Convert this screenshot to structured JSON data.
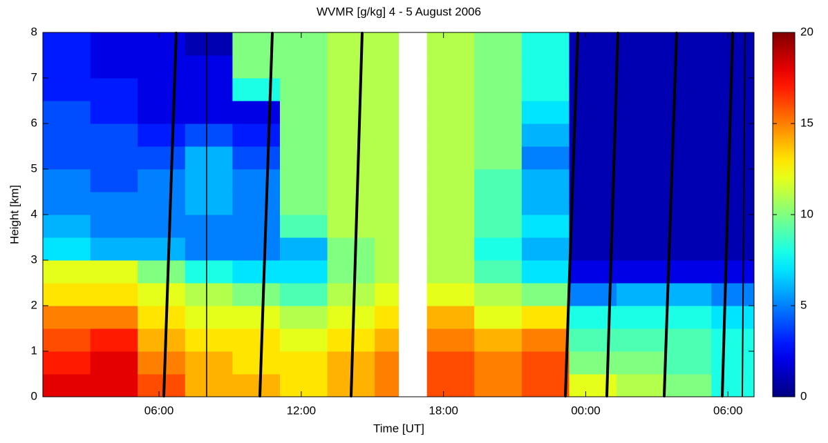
{
  "chart_data": {
    "type": "heatmap",
    "title": "WVMR [g/kg] 4 - 5 August 2006",
    "x_label": "Time [UT]",
    "y_label": "Height [km]",
    "xlim": [
      1.1,
      31.1
    ],
    "xticks": [
      {
        "value": 6,
        "label": "06:00"
      },
      {
        "value": 12,
        "label": "12:00"
      },
      {
        "value": 18,
        "label": "18:00"
      },
      {
        "value": 24,
        "label": "00:00"
      },
      {
        "value": 30,
        "label": "06:00"
      }
    ],
    "ylim": [
      0,
      8
    ],
    "yticks": [
      0,
      1,
      2,
      3,
      4,
      5,
      6,
      7,
      8
    ],
    "clim": [
      0,
      20
    ],
    "cticks": [
      0,
      5,
      10,
      15,
      20
    ],
    "colormap": "jet",
    "x_edges": [
      1.1,
      3.1,
      5.1,
      7.1,
      9.1,
      11.1,
      13.1,
      15.1,
      16.1,
      17.3,
      19.3,
      21.3,
      23.3,
      25.3,
      27.3,
      29.3,
      31.1
    ],
    "y_edges": [
      0,
      0.5,
      1,
      1.5,
      2,
      2.5,
      3,
      3.5,
      4,
      4.5,
      5,
      5.5,
      6,
      6.5,
      7,
      7.5,
      8
    ],
    "z": [
      [
        18,
        17,
        16,
        15,
        13,
        12,
        7,
        6,
        5,
        5,
        4,
        4,
        4,
        3,
        3,
        3
      ],
      [
        18,
        18,
        17,
        15,
        13,
        12,
        6,
        5,
        5,
        4,
        4,
        4,
        3,
        3,
        2,
        2
      ],
      [
        16,
        15,
        14,
        13,
        12,
        10,
        6,
        5,
        5,
        5,
        4,
        3,
        2,
        2,
        2,
        2
      ],
      [
        14,
        14,
        13,
        12,
        11,
        8,
        5,
        5,
        6,
        6,
        6,
        4,
        2,
        2,
        2,
        1
      ],
      [
        14,
        13,
        13,
        12,
        10,
        7,
        5,
        5,
        5,
        5,
        4,
        3,
        2,
        8,
        10,
        10
      ],
      [
        13,
        13,
        12,
        11,
        9,
        7,
        6,
        9,
        10,
        10,
        10,
        10,
        10,
        10,
        10,
        10
      ],
      [
        14,
        14,
        13,
        12,
        11,
        10,
        10,
        11,
        11,
        11,
        11,
        11,
        11,
        11,
        11,
        11
      ],
      [
        15,
        15,
        14,
        13,
        12,
        11,
        11,
        11,
        11,
        11,
        11,
        11,
        11,
        11,
        11,
        11
      ],
      [
        null,
        null,
        null,
        null,
        null,
        null,
        null,
        null,
        null,
        null,
        null,
        null,
        null,
        null,
        null,
        null
      ],
      [
        16,
        16,
        15,
        14,
        12,
        11,
        11,
        11,
        11,
        11,
        11,
        11,
        11,
        11,
        11,
        11
      ],
      [
        15,
        15,
        14,
        12,
        11,
        9,
        8,
        9,
        9,
        9,
        10,
        10,
        10,
        10,
        10,
        10
      ],
      [
        16,
        16,
        15,
        13,
        10,
        7,
        6,
        7,
        6,
        6,
        5,
        6,
        7,
        8,
        8,
        8
      ],
      [
        12,
        10,
        9,
        8,
        5,
        2,
        1,
        1,
        1,
        1,
        1,
        1,
        1,
        1,
        1,
        1
      ],
      [
        11,
        10,
        9,
        8,
        6,
        2,
        1,
        1,
        1,
        1,
        1,
        1,
        1,
        1,
        1,
        1
      ],
      [
        10,
        9,
        9,
        8,
        6,
        2,
        1,
        1,
        1,
        1,
        1,
        1,
        1,
        1,
        1,
        1
      ],
      [
        8,
        8,
        8,
        7,
        5,
        2,
        1,
        1,
        1,
        1,
        1,
        1,
        1,
        1,
        1,
        1
      ]
    ]
  }
}
